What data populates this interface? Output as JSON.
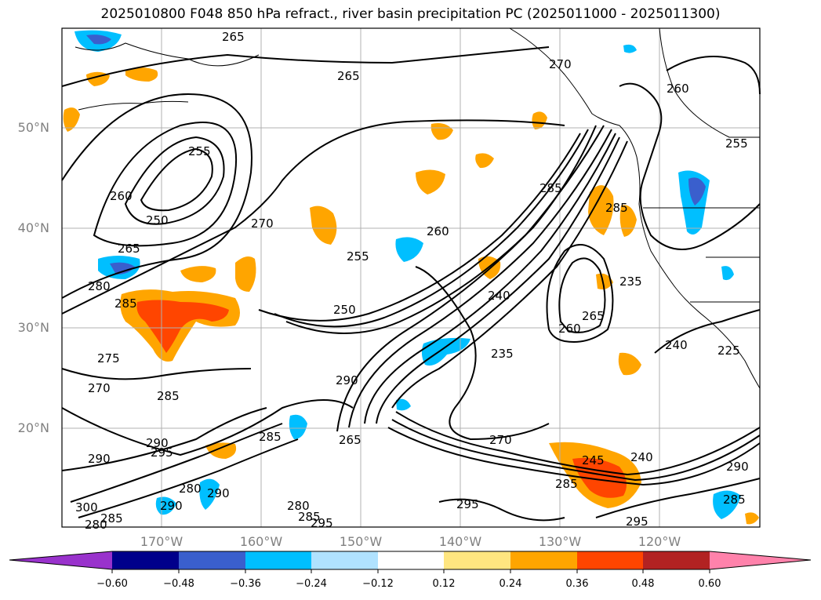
{
  "title": "2025010800 F048 850 hPa refract., river basin precipitation PC (2025011000 - 2025011300)",
  "lat_labels": [
    "50°N",
    "40°N",
    "30°N",
    "20°N"
  ],
  "lon_labels": [
    "170°W",
    "160°W",
    "150°W",
    "140°W",
    "130°W",
    "120°W"
  ],
  "colorbar": {
    "ticks": [
      "−0.60",
      "−0.48",
      "−0.36",
      "−0.24",
      "−0.12",
      "0.12",
      "0.24",
      "0.36",
      "0.48",
      "0.60"
    ],
    "colors": [
      "#9932cc",
      "#00008b",
      "#3a5fcd",
      "#00bfff",
      "#b0e2ff",
      "#ffffff",
      "#ffe680",
      "#ffa500",
      "#ff4500",
      "#b22222",
      "#ff82ab"
    ]
  },
  "contour_labels": [
    "265",
    "270",
    "265",
    "260",
    "255",
    "255",
    "260",
    "250",
    "265",
    "280",
    "285",
    "270",
    "255",
    "260",
    "250",
    "285",
    "285",
    "240",
    "235",
    "265",
    "260",
    "235",
    "240",
    "225",
    "275",
    "270",
    "285",
    "290",
    "265",
    "290",
    "295",
    "290",
    "285",
    "280",
    "290",
    "300",
    "285",
    "280",
    "285",
    "280",
    "285",
    "290",
    "295",
    "270",
    "245",
    "240",
    "290",
    "285",
    "295",
    "295"
  ]
}
